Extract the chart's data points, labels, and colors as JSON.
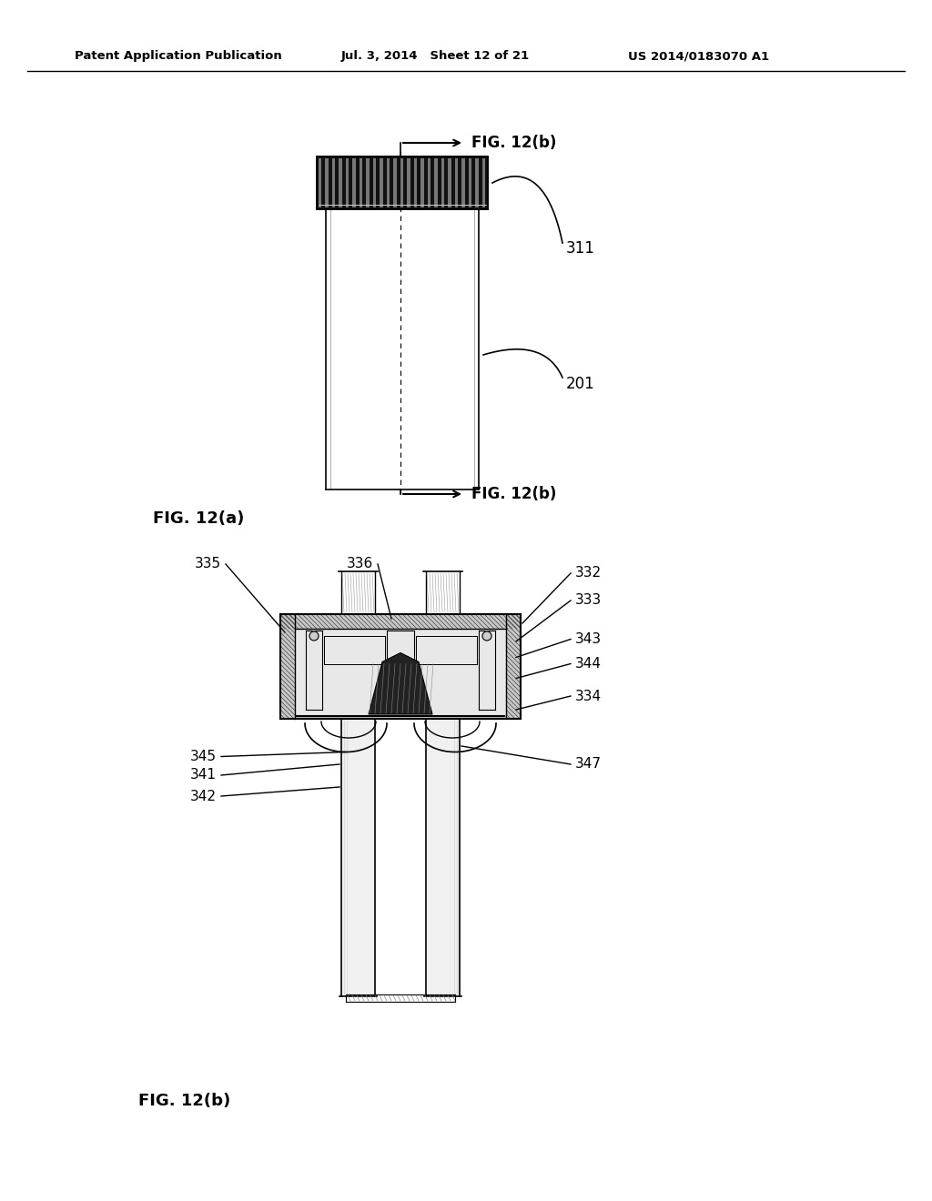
{
  "bg_color": "#ffffff",
  "header_left": "Patent Application Publication",
  "header_mid": "Jul. 3, 2014   Sheet 12 of 21",
  "header_right": "US 2014/0183070 A1",
  "fig_a_label": "FIG. 12(a)",
  "fig_b_label_top": "FIG. 12(b)",
  "fig_b_label_bot": "FIG. 12(b)",
  "fig_b_main": "FIG. 12(b)",
  "label_311": "311",
  "label_201": "201",
  "line_color": "#000000"
}
